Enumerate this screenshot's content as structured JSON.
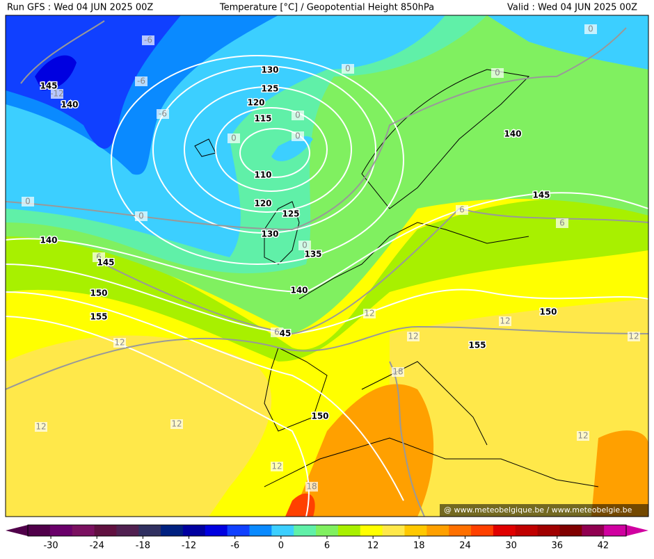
{
  "header": {
    "run": "Run GFS : Wed 04 JUN 2025 00Z",
    "title": "Temperature [°C] / Geopotential Height 850hPa",
    "valid": "Valid : Wed 04 JUN 2025 00Z"
  },
  "watermark": "@ www.meteobelgique.be / www.meteobelgie.be",
  "height_labels": [
    "130",
    "125",
    "120",
    "115",
    "110",
    "120",
    "125",
    "130",
    "135",
    "140",
    "140",
    "145",
    "150",
    "155",
    "45",
    "150",
    "155",
    "150",
    "140",
    "145",
    "145",
    "140"
  ],
  "temperature_labels": [
    "-6",
    "-6",
    "-6",
    "-12",
    "0",
    "0",
    "0",
    "0",
    "0",
    "0",
    "0",
    "0",
    "0",
    "6",
    "6",
    "6",
    "6",
    "12",
    "12",
    "12",
    "12",
    "12",
    "12",
    "12",
    "12",
    "12",
    "18",
    "18"
  ],
  "colorbar": {
    "lim": [
      -33,
      45
    ],
    "colors": [
      "#50004a",
      "#6a006a",
      "#7a1060",
      "#601040",
      "#502050",
      "#303060",
      "#002080",
      "#0000a0",
      "#0000e0",
      "#1040ff",
      "#0a8aff",
      "#3ccfff",
      "#60f0a8",
      "#80f060",
      "#a8f000",
      "#ffff00",
      "#ffe84a",
      "#ffc800",
      "#ffa000",
      "#ff7000",
      "#ff4000",
      "#e00000",
      "#c00000",
      "#a00000",
      "#800000",
      "#900050",
      "#d000a0"
    ],
    "ticks": [
      -30,
      -24,
      -18,
      -12,
      -6,
      0,
      6,
      12,
      18,
      24,
      30,
      36,
      42
    ]
  }
}
